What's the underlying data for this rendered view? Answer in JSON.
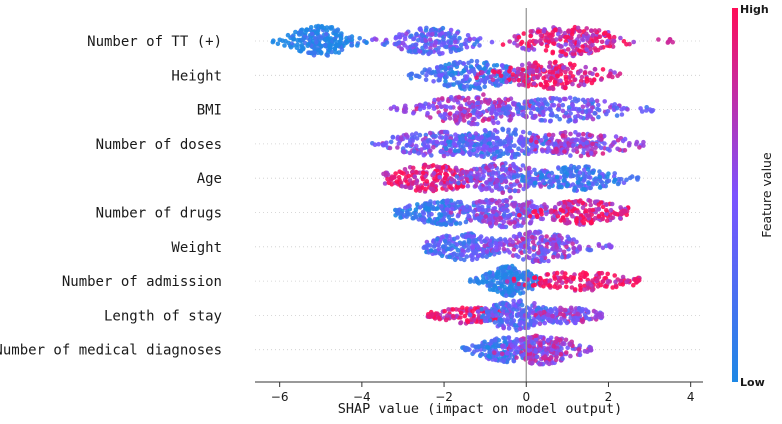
{
  "chart_data": {
    "type": "scatter",
    "subtype": "shap-beeswarm",
    "xlabel": "SHAP value (impact on model output)",
    "xlim": [
      -6.6,
      4.3
    ],
    "xticks": [
      -6,
      -4,
      -2,
      0,
      2,
      4
    ],
    "colorbar": {
      "title": "Feature value",
      "high_label": "High",
      "low_label": "Low",
      "low_color": "#1e88e5",
      "high_color": "#ff0d57"
    },
    "features": [
      {
        "name": "Number of TT (+)",
        "min": -6.2,
        "max": 3.8,
        "clusters": [
          {
            "center": -5.0,
            "spread": 0.45,
            "width": 1.0,
            "color": 0.0
          },
          {
            "center": -2.3,
            "spread": 0.55,
            "width": 0.9,
            "color": 0.35
          },
          {
            "center": 1.0,
            "spread": 0.7,
            "width": 1.0,
            "color": 0.8
          }
        ]
      },
      {
        "name": "Height",
        "min": -2.9,
        "max": 2.3,
        "clusters": [
          {
            "center": -1.3,
            "spread": 0.6,
            "width": 1.0,
            "color": 0.2
          },
          {
            "center": 0.6,
            "spread": 0.7,
            "width": 0.9,
            "color": 0.85
          }
        ]
      },
      {
        "name": "BMI",
        "min": -3.3,
        "max": 3.1,
        "clusters": [
          {
            "center": -1.2,
            "spread": 0.8,
            "width": 1.0,
            "color": 0.6
          },
          {
            "center": 0.9,
            "spread": 0.8,
            "width": 0.8,
            "color": 0.4
          }
        ]
      },
      {
        "name": "Number of doses",
        "min": -3.8,
        "max": 2.9,
        "clusters": [
          {
            "center": -2.2,
            "spread": 0.7,
            "width": 0.8,
            "color": 0.45
          },
          {
            "center": -0.6,
            "spread": 0.7,
            "width": 1.0,
            "color": 0.3
          },
          {
            "center": 1.3,
            "spread": 0.7,
            "width": 0.8,
            "color": 0.6
          }
        ]
      },
      {
        "name": "Age",
        "min": -3.5,
        "max": 2.8,
        "clusters": [
          {
            "center": -2.3,
            "spread": 0.6,
            "width": 0.9,
            "color": 0.9
          },
          {
            "center": -0.5,
            "spread": 0.6,
            "width": 1.0,
            "color": 0.5
          },
          {
            "center": 1.2,
            "spread": 0.6,
            "width": 0.8,
            "color": 0.2
          }
        ]
      },
      {
        "name": "Number of drugs",
        "min": -3.2,
        "max": 2.5,
        "clusters": [
          {
            "center": -2.0,
            "spread": 0.6,
            "width": 0.8,
            "color": 0.15
          },
          {
            "center": -0.5,
            "spread": 0.6,
            "width": 1.0,
            "color": 0.5
          },
          {
            "center": 1.4,
            "spread": 0.6,
            "width": 0.8,
            "color": 0.85
          }
        ]
      },
      {
        "name": "Weight",
        "min": -2.5,
        "max": 2.1,
        "clusters": [
          {
            "center": -1.5,
            "spread": 0.5,
            "width": 0.9,
            "color": 0.3
          },
          {
            "center": 0.3,
            "spread": 0.6,
            "width": 1.0,
            "color": 0.55
          }
        ]
      },
      {
        "name": "Number of admission",
        "min": -1.4,
        "max": 2.9,
        "clusters": [
          {
            "center": -0.4,
            "spread": 0.35,
            "width": 1.0,
            "color": 0.05
          },
          {
            "center": 1.3,
            "spread": 0.7,
            "width": 0.6,
            "color": 0.95
          }
        ]
      },
      {
        "name": "Length of stay",
        "min": -2.4,
        "max": 1.9,
        "clusters": [
          {
            "center": -1.4,
            "spread": 0.5,
            "width": 0.5,
            "color": 0.9
          },
          {
            "center": -0.2,
            "spread": 0.5,
            "width": 1.0,
            "color": 0.35
          },
          {
            "center": 1.0,
            "spread": 0.4,
            "width": 0.5,
            "color": 0.6
          }
        ]
      },
      {
        "name": "Number of medical diagnoses",
        "min": -1.6,
        "max": 1.6,
        "clusters": [
          {
            "center": -0.5,
            "spread": 0.4,
            "width": 0.8,
            "color": 0.2
          },
          {
            "center": 0.4,
            "spread": 0.45,
            "width": 1.0,
            "color": 0.6
          }
        ]
      }
    ]
  }
}
